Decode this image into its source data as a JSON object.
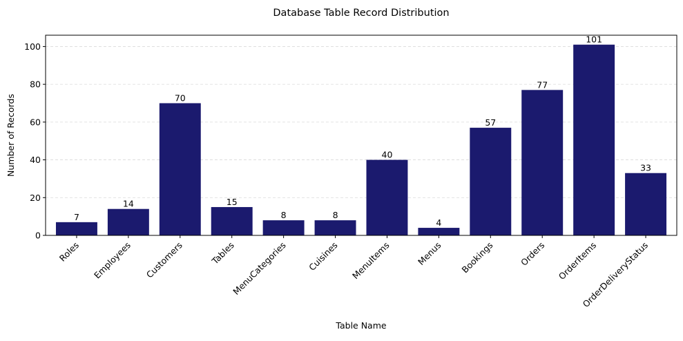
{
  "chart_data": {
    "type": "bar",
    "title": "Database Table Record Distribution",
    "xlabel": "Table Name",
    "ylabel": "Number of Records",
    "categories": [
      "Roles",
      "Employees",
      "Customers",
      "Tables",
      "MenuCategories",
      "Cuisines",
      "MenuItems",
      "Menus",
      "Bookings",
      "Orders",
      "OrderItems",
      "OrderDeliveryStatus"
    ],
    "values": [
      7,
      14,
      70,
      15,
      8,
      8,
      40,
      4,
      57,
      77,
      101,
      33
    ],
    "ylim": [
      0,
      106
    ],
    "yticks": [
      0,
      20,
      40,
      60,
      80,
      100
    ],
    "grid": "y-dashed",
    "bar_color": "#1b1a6e",
    "grid_color": "#d9d9d9"
  }
}
